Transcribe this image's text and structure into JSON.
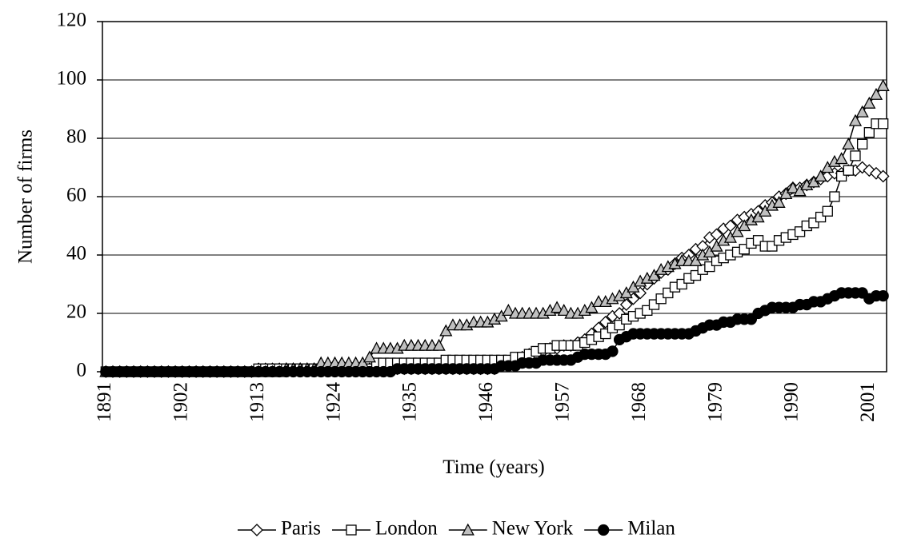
{
  "chart_data": {
    "type": "line",
    "xlabel": "Time (years)",
    "ylabel": "Number of firms",
    "categories": [
      "1891",
      null,
      null,
      null,
      null,
      null,
      null,
      null,
      null,
      null,
      null,
      "1902",
      null,
      null,
      null,
      null,
      null,
      null,
      null,
      null,
      null,
      null,
      "1913",
      null,
      null,
      null,
      null,
      null,
      null,
      null,
      null,
      null,
      null,
      "1924",
      null,
      null,
      null,
      null,
      null,
      null,
      null,
      null,
      null,
      null,
      "1935",
      null,
      null,
      null,
      null,
      null,
      null,
      null,
      null,
      null,
      null,
      "1946",
      null,
      null,
      null,
      null,
      null,
      null,
      null,
      null,
      null,
      null,
      "1957",
      null,
      null,
      null,
      null,
      null,
      null,
      null,
      null,
      null,
      null,
      "1968",
      null,
      null,
      null,
      null,
      null,
      null,
      null,
      null,
      null,
      null,
      "1979",
      null,
      null,
      null,
      null,
      null,
      null,
      null,
      null,
      null,
      null,
      "1990",
      null,
      null,
      null,
      null,
      null,
      null,
      null,
      null,
      null,
      null,
      "2001",
      null,
      null
    ],
    "ylim": [
      0,
      120
    ],
    "yticks": [
      0,
      20,
      40,
      60,
      80,
      100,
      120
    ],
    "grid": true,
    "legend": "bottom",
    "series": [
      {
        "name": "Paris",
        "marker": "diamond",
        "color": "#ffffff",
        "values": [
          0,
          0,
          0,
          0,
          0,
          0,
          0,
          0,
          0,
          0,
          0,
          0,
          0,
          0,
          0,
          0,
          0,
          0,
          0,
          0,
          0,
          0,
          1,
          1,
          1,
          1,
          1,
          1,
          1,
          1,
          1,
          1,
          1,
          1,
          1,
          1,
          1,
          1,
          1,
          1,
          1,
          1,
          1,
          1,
          1,
          1,
          1,
          1,
          1,
          1,
          1,
          1,
          1,
          1,
          1,
          1,
          1,
          2,
          3,
          4,
          5,
          6,
          6,
          7,
          8,
          8,
          9,
          9,
          10,
          11,
          13,
          15,
          17,
          19,
          20,
          23,
          25,
          27,
          30,
          32,
          34,
          35,
          37,
          39,
          40,
          42,
          43,
          46,
          47,
          49,
          50,
          52,
          53,
          54,
          55,
          57,
          58,
          60,
          61,
          63,
          63,
          64,
          65,
          66,
          67,
          68,
          68,
          69,
          69,
          70,
          69,
          68,
          67
        ]
      },
      {
        "name": "London",
        "marker": "square",
        "color": "#ffffff",
        "values": [
          0,
          0,
          0,
          0,
          0,
          0,
          0,
          0,
          0,
          0,
          0,
          0,
          0,
          0,
          0,
          0,
          0,
          0,
          0,
          0,
          0,
          0,
          1,
          1,
          1,
          1,
          1,
          1,
          1,
          1,
          1,
          1,
          1,
          1,
          1,
          1,
          1,
          1,
          1,
          3,
          3,
          3,
          3,
          3,
          3,
          3,
          3,
          3,
          3,
          4,
          4,
          4,
          4,
          4,
          4,
          4,
          4,
          4,
          4,
          5,
          5,
          6,
          7,
          8,
          8,
          9,
          9,
          9,
          9,
          10,
          11,
          12,
          13,
          15,
          16,
          18,
          19,
          20,
          21,
          23,
          25,
          27,
          29,
          30,
          32,
          33,
          35,
          36,
          38,
          39,
          40,
          41,
          42,
          44,
          45,
          43,
          43,
          45,
          46,
          47,
          48,
          50,
          51,
          53,
          55,
          60,
          67,
          69,
          74,
          78,
          82,
          85,
          85
        ]
      },
      {
        "name": "New York",
        "marker": "triangle",
        "color": "#c0c0c0",
        "values": [
          0,
          0,
          0,
          0,
          0,
          0,
          0,
          0,
          0,
          0,
          0,
          0,
          0,
          0,
          0,
          0,
          0,
          0,
          0,
          0,
          0,
          0,
          0,
          0,
          0,
          0,
          1,
          1,
          1,
          1,
          1,
          3,
          3,
          3,
          3,
          3,
          3,
          3,
          5,
          8,
          8,
          8,
          8,
          9,
          9,
          9,
          9,
          9,
          9,
          14,
          16,
          16,
          16,
          17,
          17,
          17,
          18,
          19,
          21,
          20,
          20,
          20,
          20,
          20,
          21,
          22,
          21,
          20,
          20,
          21,
          22,
          24,
          24,
          25,
          26,
          27,
          29,
          31,
          32,
          33,
          35,
          36,
          37,
          38,
          38,
          38,
          40,
          41,
          43,
          45,
          46,
          48,
          50,
          52,
          53,
          55,
          57,
          58,
          61,
          63,
          62,
          64,
          65,
          67,
          70,
          72,
          73,
          78,
          86,
          89,
          92,
          95,
          98
        ]
      },
      {
        "name": "Milan",
        "marker": "circle",
        "color": "#000000",
        "values": [
          0,
          0,
          0,
          0,
          0,
          0,
          0,
          0,
          0,
          0,
          0,
          0,
          0,
          0,
          0,
          0,
          0,
          0,
          0,
          0,
          0,
          0,
          0,
          0,
          0,
          0,
          0,
          0,
          0,
          0,
          0,
          0,
          0,
          0,
          0,
          0,
          0,
          0,
          0,
          0,
          0,
          0,
          1,
          1,
          1,
          1,
          1,
          1,
          1,
          1,
          1,
          1,
          1,
          1,
          1,
          1,
          1,
          2,
          2,
          2,
          3,
          3,
          3,
          4,
          4,
          4,
          4,
          4,
          5,
          6,
          6,
          6,
          6,
          7,
          11,
          12,
          13,
          13,
          13,
          13,
          13,
          13,
          13,
          13,
          13,
          14,
          15,
          16,
          16,
          17,
          17,
          18,
          18,
          18,
          20,
          21,
          22,
          22,
          22,
          22,
          23,
          23,
          24,
          24,
          25,
          26,
          27,
          27,
          27,
          27,
          25,
          26,
          26
        ]
      }
    ]
  }
}
